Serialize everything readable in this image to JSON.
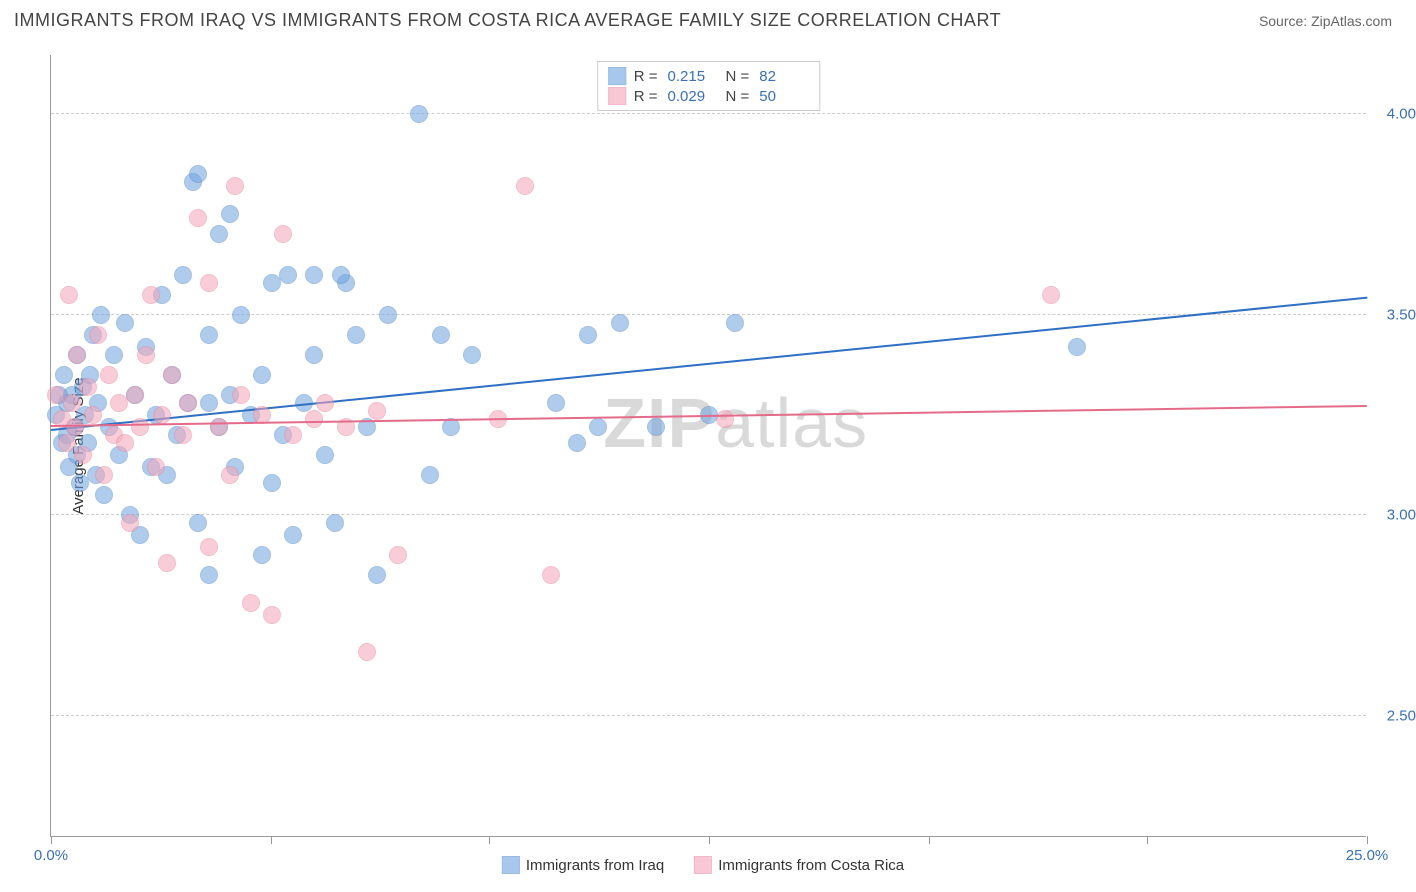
{
  "title": "IMMIGRANTS FROM IRAQ VS IMMIGRANTS FROM COSTA RICA AVERAGE FAMILY SIZE CORRELATION CHART",
  "source_label": "Source:",
  "source_name": "ZipAtlas.com",
  "ylabel": "Average Family Size",
  "watermark": {
    "part1": "ZIP",
    "part2": "atlas"
  },
  "chart": {
    "type": "scatter",
    "background_color": "#ffffff",
    "grid_color": "#cccccc",
    "axis_color": "#999999",
    "label_color": "#3b6fb6",
    "label_fontsize": 15,
    "ylabel_fontsize": 15,
    "title_fontsize": 18,
    "xlim": [
      0,
      25
    ],
    "ylim": [
      2.2,
      4.15
    ],
    "xtick_positions": [
      0,
      4.17,
      8.33,
      12.5,
      16.67,
      20.83,
      25
    ],
    "xtick_labels": [
      "0.0%",
      "",
      "",
      "",
      "",
      "",
      "25.0%"
    ],
    "ytick_positions": [
      2.5,
      3.0,
      3.5,
      4.0
    ],
    "ytick_labels": [
      "2.50",
      "3.00",
      "3.50",
      "4.00"
    ],
    "marker_radius": 9,
    "marker_opacity": 0.55,
    "series": [
      {
        "name": "Immigrants from Iraq",
        "color": "#6fa3e0",
        "stroke": "#5a8fc9",
        "R": "0.215",
        "N": "82",
        "trend": {
          "x1": 0,
          "y1": 3.21,
          "x2": 25,
          "y2": 3.54,
          "color": "#2f6fc4",
          "width": 2
        },
        "points": [
          [
            0.1,
            3.25
          ],
          [
            0.15,
            3.3
          ],
          [
            0.2,
            3.18
          ],
          [
            0.25,
            3.35
          ],
          [
            0.3,
            3.2
          ],
          [
            0.3,
            3.28
          ],
          [
            0.35,
            3.12
          ],
          [
            0.4,
            3.3
          ],
          [
            0.45,
            3.22
          ],
          [
            0.5,
            3.15
          ],
          [
            0.5,
            3.4
          ],
          [
            0.55,
            3.08
          ],
          [
            0.6,
            3.32
          ],
          [
            0.65,
            3.25
          ],
          [
            0.7,
            3.18
          ],
          [
            0.75,
            3.35
          ],
          [
            0.8,
            3.45
          ],
          [
            0.85,
            3.1
          ],
          [
            0.9,
            3.28
          ],
          [
            0.95,
            3.5
          ],
          [
            1.0,
            3.05
          ],
          [
            1.1,
            3.22
          ],
          [
            1.2,
            3.4
          ],
          [
            1.3,
            3.15
          ],
          [
            1.4,
            3.48
          ],
          [
            1.5,
            3.0
          ],
          [
            1.6,
            3.3
          ],
          [
            1.7,
            2.95
          ],
          [
            1.8,
            3.42
          ],
          [
            1.9,
            3.12
          ],
          [
            2.0,
            3.25
          ],
          [
            2.1,
            3.55
          ],
          [
            2.2,
            3.1
          ],
          [
            2.3,
            3.35
          ],
          [
            2.4,
            3.2
          ],
          [
            2.5,
            3.6
          ],
          [
            2.6,
            3.28
          ],
          [
            2.7,
            3.83
          ],
          [
            2.8,
            2.98
          ],
          [
            3.0,
            3.45
          ],
          [
            3.0,
            2.85
          ],
          [
            3.2,
            3.7
          ],
          [
            3.2,
            3.22
          ],
          [
            3.4,
            3.3
          ],
          [
            3.5,
            3.12
          ],
          [
            3.6,
            3.5
          ],
          [
            3.8,
            3.25
          ],
          [
            4.0,
            3.35
          ],
          [
            4.0,
            2.9
          ],
          [
            4.2,
            3.08
          ],
          [
            4.2,
            3.58
          ],
          [
            4.4,
            3.2
          ],
          [
            4.5,
            3.6
          ],
          [
            4.6,
            2.95
          ],
          [
            4.8,
            3.28
          ],
          [
            5.0,
            3.4
          ],
          [
            5.0,
            3.6
          ],
          [
            5.2,
            3.15
          ],
          [
            5.4,
            2.98
          ],
          [
            5.6,
            3.58
          ],
          [
            5.8,
            3.45
          ],
          [
            6.0,
            3.22
          ],
          [
            6.2,
            2.85
          ],
          [
            6.4,
            3.5
          ],
          [
            7.0,
            4.0
          ],
          [
            7.2,
            3.1
          ],
          [
            7.4,
            3.45
          ],
          [
            7.6,
            3.22
          ],
          [
            8.0,
            3.4
          ],
          [
            9.6,
            3.28
          ],
          [
            10.0,
            3.18
          ],
          [
            10.2,
            3.45
          ],
          [
            10.4,
            3.22
          ],
          [
            10.8,
            3.48
          ],
          [
            11.5,
            3.22
          ],
          [
            12.5,
            3.25
          ],
          [
            13.0,
            3.48
          ],
          [
            19.5,
            3.42
          ],
          [
            2.8,
            3.85
          ],
          [
            3.4,
            3.75
          ],
          [
            5.5,
            3.6
          ],
          [
            3.0,
            3.28
          ]
        ]
      },
      {
        "name": "Immigrants from Costa Rica",
        "color": "#f4a6ba",
        "stroke": "#e88ba3",
        "R": "0.029",
        "N": "50",
        "trend": {
          "x1": 0,
          "y1": 3.22,
          "x2": 25,
          "y2": 3.27,
          "color": "#e56b8a",
          "width": 2
        },
        "points": [
          [
            0.1,
            3.3
          ],
          [
            0.2,
            3.24
          ],
          [
            0.3,
            3.18
          ],
          [
            0.35,
            3.55
          ],
          [
            0.4,
            3.28
          ],
          [
            0.45,
            3.22
          ],
          [
            0.5,
            3.4
          ],
          [
            0.6,
            3.15
          ],
          [
            0.7,
            3.32
          ],
          [
            0.8,
            3.25
          ],
          [
            0.9,
            3.45
          ],
          [
            1.0,
            3.1
          ],
          [
            1.1,
            3.35
          ],
          [
            1.2,
            3.2
          ],
          [
            1.3,
            3.28
          ],
          [
            1.4,
            3.18
          ],
          [
            1.5,
            2.98
          ],
          [
            1.6,
            3.3
          ],
          [
            1.7,
            3.22
          ],
          [
            1.8,
            3.4
          ],
          [
            1.9,
            3.55
          ],
          [
            2.0,
            3.12
          ],
          [
            2.1,
            3.25
          ],
          [
            2.2,
            2.88
          ],
          [
            2.3,
            3.35
          ],
          [
            2.5,
            3.2
          ],
          [
            2.6,
            3.28
          ],
          [
            2.8,
            3.74
          ],
          [
            3.0,
            2.92
          ],
          [
            3.0,
            3.58
          ],
          [
            3.2,
            3.22
          ],
          [
            3.4,
            3.1
          ],
          [
            3.5,
            3.82
          ],
          [
            3.6,
            3.3
          ],
          [
            3.8,
            2.78
          ],
          [
            4.0,
            3.25
          ],
          [
            4.2,
            2.75
          ],
          [
            4.4,
            3.7
          ],
          [
            4.6,
            3.2
          ],
          [
            5.0,
            3.24
          ],
          [
            5.2,
            3.28
          ],
          [
            5.6,
            3.22
          ],
          [
            6.0,
            2.66
          ],
          [
            6.2,
            3.26
          ],
          [
            6.6,
            2.9
          ],
          [
            8.5,
            3.24
          ],
          [
            9.0,
            3.82
          ],
          [
            9.5,
            2.85
          ],
          [
            12.8,
            3.24
          ],
          [
            19.0,
            3.55
          ]
        ]
      }
    ]
  },
  "legend_top": {
    "R_label": "R  =",
    "N_label": "N  ="
  },
  "legend_bottom_labels": [
    "Immigrants from Iraq",
    "Immigrants from Costa Rica"
  ]
}
